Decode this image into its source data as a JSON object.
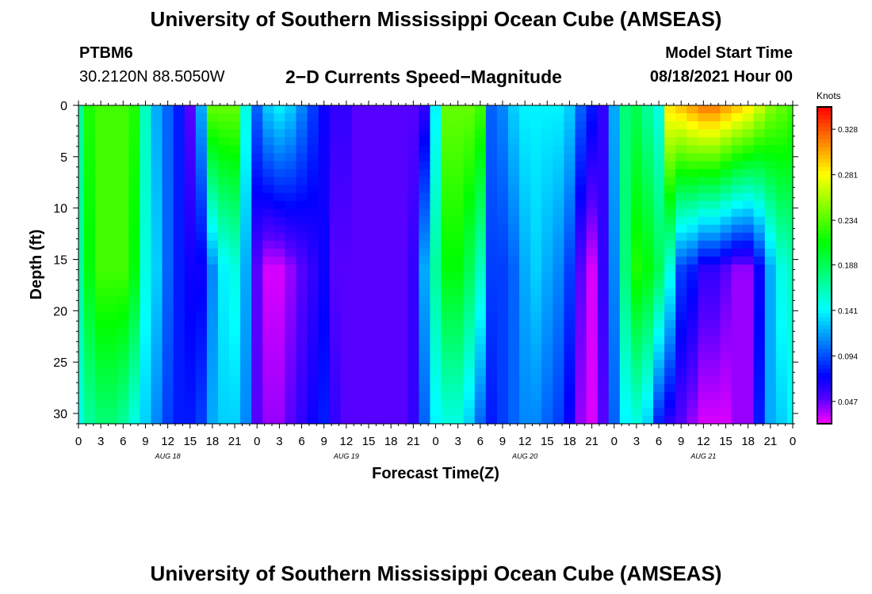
{
  "header": {
    "title": "University of Southern Mississippi Ocean Cube (AMSEAS)",
    "station": "PTBM6",
    "coords": "30.2120N  88.5050W",
    "subtitle": "2−D Currents Speed−Magnitude",
    "model_start_label": "Model Start Time",
    "model_start_value": "08/18/2021 Hour 00"
  },
  "footer": {
    "title": "University of Southern Mississippi Ocean Cube (AMSEAS)"
  },
  "chart_data": {
    "type": "heatmap",
    "title": "2−D Currents Speed−Magnitude",
    "xlabel": "Forecast Time(Z)",
    "ylabel": "Depth (ft)",
    "x_tick_labels": [
      "0",
      "3",
      "6",
      "9",
      "12",
      "15",
      "18",
      "21",
      "0",
      "3",
      "6",
      "9",
      "12",
      "15",
      "18",
      "21",
      "0",
      "3",
      "6",
      "9",
      "12",
      "15",
      "18",
      "21",
      "0",
      "3",
      "6",
      "9",
      "12",
      "15",
      "18",
      "21",
      "0"
    ],
    "day_labels": [
      "AUG 18",
      "AUG 19",
      "AUG 20",
      "AUG 21"
    ],
    "x_range_hours": [
      0,
      96
    ],
    "y_ticks": [
      0,
      5,
      10,
      15,
      20,
      25,
      30
    ],
    "y_range_ft": [
      0,
      31
    ],
    "y_inverted": true,
    "colorbar": {
      "unit": "Knots",
      "ticks": [
        0.328,
        0.281,
        0.234,
        0.188,
        0.141,
        0.094,
        0.047
      ],
      "range": [
        0.024,
        0.351
      ]
    },
    "depth_levels_ft": [
      0,
      16,
      31
    ],
    "hours": [
      0,
      1.5,
      3,
      4.5,
      6,
      7.5,
      9,
      10.5,
      12,
      13.5,
      15,
      16.5,
      18,
      19.5,
      21,
      22.5,
      24,
      25.5,
      27,
      28.5,
      30,
      31.5,
      33,
      34.5,
      36,
      37.5,
      39,
      40.5,
      42,
      43.5,
      45,
      46.5,
      48,
      49.5,
      51,
      52.5,
      54,
      55.5,
      57,
      58.5,
      60,
      61.5,
      63,
      64.5,
      66,
      67.5,
      69,
      70.5,
      72,
      73.5,
      75,
      76.5,
      78,
      79.5,
      81,
      82.5,
      84,
      85.5,
      87,
      88.5,
      90,
      91.5,
      93,
      94.5,
      96
    ],
    "speed_knots": [
      [
        0.17,
        0.22,
        0.23,
        0.23,
        0.23,
        0.22,
        0.16,
        0.12,
        0.1,
        0.08,
        0.05,
        0.12,
        0.24,
        0.24,
        0.24,
        0.15,
        0.1,
        0.13,
        0.14,
        0.13,
        0.11,
        0.09,
        0.07,
        0.06,
        0.06,
        0.05,
        0.05,
        0.05,
        0.05,
        0.05,
        0.05,
        0.06,
        0.14,
        0.24,
        0.24,
        0.24,
        0.23,
        0.1,
        0.11,
        0.13,
        0.14,
        0.14,
        0.14,
        0.14,
        0.13,
        0.1,
        0.08,
        0.06,
        0.12,
        0.18,
        0.19,
        0.17,
        0.15,
        0.29,
        0.3,
        0.31,
        0.32,
        0.32,
        0.31,
        0.3,
        0.29,
        0.27,
        0.25,
        0.24,
        0.23
      ],
      [
        0.17,
        0.21,
        0.23,
        0.23,
        0.23,
        0.21,
        0.15,
        0.13,
        0.1,
        0.08,
        0.07,
        0.07,
        0.11,
        0.14,
        0.15,
        0.12,
        0.05,
        0.03,
        0.03,
        0.04,
        0.05,
        0.06,
        0.07,
        0.05,
        0.05,
        0.05,
        0.05,
        0.05,
        0.05,
        0.05,
        0.06,
        0.12,
        0.17,
        0.21,
        0.21,
        0.19,
        0.16,
        0.09,
        0.09,
        0.1,
        0.12,
        0.13,
        0.12,
        0.11,
        0.09,
        0.05,
        0.03,
        0.06,
        0.11,
        0.18,
        0.22,
        0.21,
        0.19,
        0.15,
        0.09,
        0.08,
        0.06,
        0.06,
        0.05,
        0.04,
        0.04,
        0.07,
        0.12,
        0.15,
        0.16
      ],
      [
        0.15,
        0.17,
        0.18,
        0.18,
        0.17,
        0.15,
        0.13,
        0.11,
        0.09,
        0.08,
        0.08,
        0.09,
        0.12,
        0.13,
        0.13,
        0.11,
        0.05,
        0.04,
        0.04,
        0.05,
        0.06,
        0.07,
        0.08,
        0.06,
        0.05,
        0.05,
        0.05,
        0.05,
        0.05,
        0.05,
        0.06,
        0.1,
        0.14,
        0.15,
        0.15,
        0.13,
        0.1,
        0.08,
        0.09,
        0.1,
        0.11,
        0.11,
        0.1,
        0.09,
        0.07,
        0.04,
        0.03,
        0.05,
        0.1,
        0.14,
        0.15,
        0.13,
        0.08,
        0.06,
        0.05,
        0.04,
        0.03,
        0.03,
        0.03,
        0.04,
        0.04,
        0.08,
        0.12,
        0.13,
        0.14
      ]
    ]
  }
}
